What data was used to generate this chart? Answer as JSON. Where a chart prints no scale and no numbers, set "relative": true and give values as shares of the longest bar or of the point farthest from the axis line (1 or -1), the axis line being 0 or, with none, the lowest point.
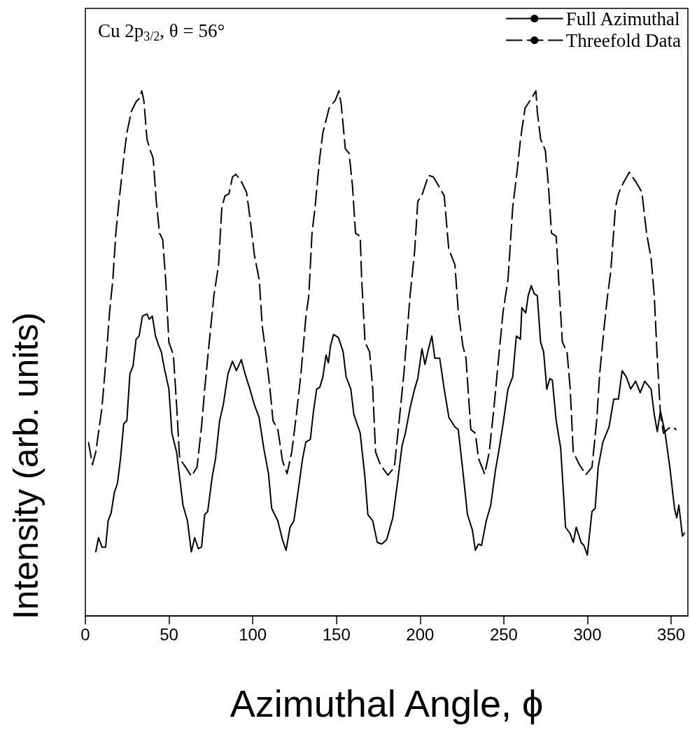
{
  "chart_data": {
    "type": "line",
    "xlabel": "Azimuthal Angle, ϕ",
    "ylabel": "Intensity (arb. units)",
    "relative": true,
    "xlim": [
      0,
      360
    ],
    "xticks": [
      0,
      50,
      100,
      150,
      200,
      250,
      300,
      350
    ],
    "grid": false,
    "legend": "top right",
    "marker": "none",
    "annotations": [
      "Cu 2p$_{3/2}$, θ = 56°"
    ],
    "series": [
      {
        "name": "Full Azimuthal",
        "color": "#000000",
        "line_style": "solid",
        "x": [
          6.2,
          7.9,
          9.9,
          12.1,
          13.6,
          15.4,
          17.3,
          19.2,
          21,
          22.9,
          24.8,
          26.6,
          28.5,
          30.3,
          32.1,
          34.1,
          36.8,
          38.2,
          40,
          41.9,
          43.8,
          45.4,
          47.1,
          49.9,
          51.7,
          54.5,
          58.3,
          61,
          63.3,
          65.3,
          67.5,
          69.4,
          71.3,
          73.1,
          75.8,
          77.8,
          80.2,
          82.4,
          85.2,
          87.9,
          90.2,
          93.2,
          95.4,
          98.3,
          101,
          103.8,
          106.6,
          109.4,
          111.3,
          115,
          117.7,
          119.9,
          122.3,
          124.6,
          127,
          129.8,
          131.7,
          134.4,
          136.3,
          138.2,
          140,
          141.9,
          143.8,
          145.2,
          146.5,
          148.3,
          151.2,
          154,
          155.8,
          158.6,
          160.4,
          164.2,
          167,
          168.8,
          171.7,
          174.4,
          177.1,
          180,
          183.7,
          186.7,
          189.2,
          191.2,
          194,
          196.7,
          198.6,
          201.1,
          202.9,
          205,
          207,
          208.8,
          211.7,
          214.4,
          217.2,
          220.8,
          222.8,
          225.5,
          228.3,
          231.2,
          233,
          234.9,
          236.7,
          239.5,
          242.2,
          245,
          246.9,
          249.6,
          252.5,
          255.3,
          257.5,
          259.9,
          260.8,
          263.1,
          264.6,
          266.4,
          268.3,
          270,
          272,
          273.8,
          275.7,
          277.5,
          279,
          281.3,
          284,
          286.9,
          289.6,
          291.5,
          293.3,
          296.2,
          297.9,
          299.9,
          302.7,
          304.6,
          306.4,
          309.2,
          312.9,
          315.7,
          318.5,
          320.7,
          323.2,
          325.8,
          328.8,
          331.5,
          334.2,
          338,
          339.9,
          341.7,
          343.6,
          346.4,
          349.2,
          352,
          353.3,
          354.6,
          356.7,
          358
        ],
        "values": [
          0.122,
          0.149,
          0.131,
          0.131,
          0.181,
          0.196,
          0.235,
          0.253,
          0.3,
          0.366,
          0.372,
          0.461,
          0.476,
          0.527,
          0.533,
          0.571,
          0.575,
          0.565,
          0.571,
          0.533,
          0.515,
          0.503,
          0.473,
          0.432,
          0.348,
          0.312,
          0.211,
          0.181,
          0.122,
          0.149,
          0.128,
          0.131,
          0.193,
          0.199,
          0.265,
          0.3,
          0.372,
          0.402,
          0.461,
          0.485,
          0.467,
          0.488,
          0.461,
          0.432,
          0.402,
          0.378,
          0.319,
          0.271,
          0.205,
          0.181,
          0.146,
          0.125,
          0.169,
          0.181,
          0.235,
          0.3,
          0.331,
          0.336,
          0.39,
          0.432,
          0.435,
          0.455,
          0.497,
          0.482,
          0.515,
          0.536,
          0.53,
          0.503,
          0.455,
          0.432,
          0.384,
          0.348,
          0.265,
          0.193,
          0.181,
          0.14,
          0.137,
          0.145,
          0.187,
          0.259,
          0.324,
          0.348,
          0.396,
          0.432,
          0.452,
          0.509,
          0.479,
          0.509,
          0.533,
          0.491,
          0.491,
          0.432,
          0.378,
          0.36,
          0.355,
          0.277,
          0.193,
          0.164,
          0.125,
          0.137,
          0.134,
          0.181,
          0.211,
          0.277,
          0.312,
          0.366,
          0.432,
          0.455,
          0.533,
          0.527,
          0.587,
          0.577,
          0.61,
          0.629,
          0.613,
          0.61,
          0.521,
          0.503,
          0.432,
          0.452,
          0.449,
          0.372,
          0.319,
          0.169,
          0.157,
          0.14,
          0.169,
          0.14,
          0.134,
          0.116,
          0.199,
          0.205,
          0.283,
          0.331,
          0.36,
          0.413,
          0.413,
          0.467,
          0.455,
          0.432,
          0.447,
          0.425,
          0.447,
          0.432,
          0.384,
          0.351,
          0.39,
          0.348,
          0.283,
          0.205,
          0.187,
          0.211,
          0.152,
          0.158
        ]
      },
      {
        "name": "Threefold Data",
        "color": "#000000",
        "line_style": "dashed",
        "x": [
          1.9,
          4.2,
          6.2,
          9.9,
          12.7,
          14.5,
          16.4,
          18.2,
          20.1,
          22.9,
          24.8,
          27.5,
          30.3,
          32.1,
          33.7,
          35,
          36.8,
          38.7,
          40.5,
          42.4,
          44.3,
          46.2,
          48,
          49.9,
          52.6,
          54.5,
          56.3,
          60,
          63.3,
          66.7,
          69.4,
          71.3,
          74,
          76.8,
          79.6,
          81.5,
          83.4,
          85.8,
          87.9,
          89.9,
          92.6,
          96.3,
          98.3,
          101,
          103.9,
          105.7,
          107.5,
          110.3,
          112.1,
          115,
          117.8,
          120.5,
          123.3,
          126.1,
          128.8,
          131.7,
          133.5,
          135.4,
          137.2,
          140,
          141.9,
          145.6,
          149.3,
          151.5,
          152.9,
          155.3,
          157.6,
          159.6,
          161.4,
          164.2,
          165.1,
          167.1,
          169.8,
          171.7,
          173.4,
          176.2,
          180.8,
          184.6,
          187.5,
          190.3,
          194,
          196.7,
          198.6,
          201.4,
          205,
          207.9,
          210.7,
          214.4,
          217.1,
          220.8,
          222.8,
          225.5,
          227.4,
          230.3,
          233,
          234.9,
          238.6,
          241.3,
          244.1,
          246.9,
          249.6,
          252.5,
          255.3,
          258,
          260,
          262.7,
          266.4,
          269.2,
          270,
          272,
          274.8,
          276.7,
          278.5,
          281.3,
          282.8,
          285,
          287.8,
          289.7,
          291.5,
          295.2,
          299,
          302.7,
          305.5,
          307.3,
          310,
          312,
          313.9,
          316.7,
          318.5,
          321.3,
          325,
          328.8,
          332.5,
          335.3,
          338,
          339.9,
          341.7,
          343.6,
          345.4,
          348.3,
          351,
          352.9
        ],
        "values": [
          0.33,
          0.288,
          0.312,
          0.396,
          0.503,
          0.58,
          0.64,
          0.729,
          0.789,
          0.872,
          0.92,
          0.961,
          0.979,
          0.985,
          1,
          0.98,
          0.908,
          0.887,
          0.872,
          0.789,
          0.729,
          0.717,
          0.64,
          0.521,
          0.497,
          0.402,
          0.3,
          0.283,
          0.266,
          0.283,
          0.36,
          0.432,
          0.521,
          0.61,
          0.669,
          0.777,
          0.8,
          0.804,
          0.836,
          0.841,
          0.831,
          0.807,
          0.759,
          0.687,
          0.64,
          0.551,
          0.509,
          0.432,
          0.372,
          0.355,
          0.295,
          0.271,
          0.312,
          0.384,
          0.461,
          0.568,
          0.61,
          0.729,
          0.777,
          0.872,
          0.92,
          0.967,
          0.982,
          1,
          0.973,
          0.89,
          0.881,
          0.819,
          0.729,
          0.723,
          0.64,
          0.521,
          0.503,
          0.432,
          0.312,
          0.288,
          0.268,
          0.283,
          0.372,
          0.461,
          0.61,
          0.693,
          0.789,
          0.804,
          0.839,
          0.836,
          0.821,
          0.8,
          0.699,
          0.669,
          0.58,
          0.515,
          0.491,
          0.355,
          0.348,
          0.3,
          0.27,
          0.312,
          0.396,
          0.491,
          0.58,
          0.64,
          0.777,
          0.848,
          0.908,
          0.967,
          0.985,
          1,
          0.961,
          0.908,
          0.887,
          0.819,
          0.729,
          0.723,
          0.64,
          0.521,
          0.503,
          0.432,
          0.312,
          0.288,
          0.269,
          0.283,
          0.372,
          0.461,
          0.551,
          0.61,
          0.656,
          0.777,
          0.804,
          0.824,
          0.845,
          0.827,
          0.807,
          0.729,
          0.681,
          0.61,
          0.491,
          0.384,
          0.348,
          0.357,
          0.36,
          0.355
        ]
      }
    ]
  }
}
